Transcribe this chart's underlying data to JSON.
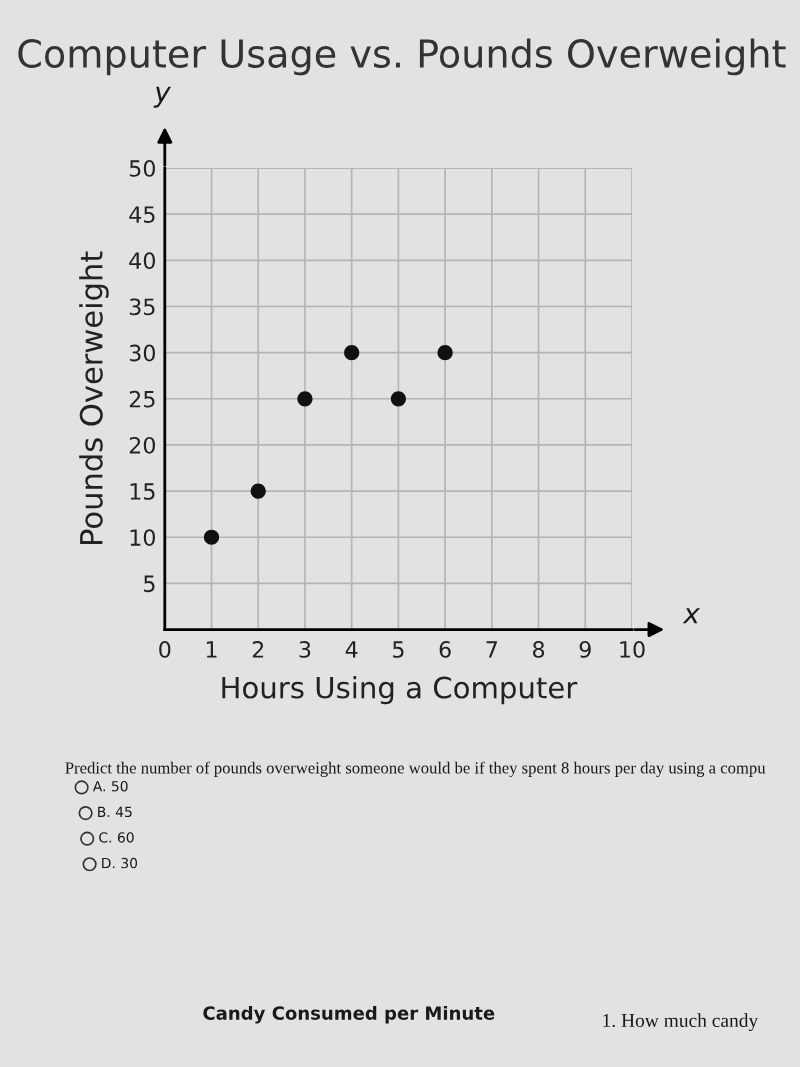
{
  "chart_data": {
    "type": "scatter",
    "title": "Computer Usage vs. Pounds Overweight",
    "xlabel": "Hours Using a Computer",
    "ylabel": "Pounds Overweight",
    "x": [
      1,
      2,
      3,
      4,
      5,
      6
    ],
    "values": [
      10,
      15,
      25,
      30,
      25,
      30
    ],
    "color": "#111111",
    "marker": "circle",
    "xlim": [
      0,
      10
    ],
    "ylim": [
      0,
      50
    ],
    "xticks": [
      0,
      1,
      2,
      3,
      4,
      5,
      6,
      7,
      8,
      9,
      10
    ],
    "yticks": [
      5,
      10,
      15,
      20,
      25,
      30,
      35,
      40,
      45,
      50
    ],
    "grid": true,
    "annotations": [
      "y",
      "x",
      "Predict the number of pounds overweight someone would be if they spent 8 hours per day using a compu",
      "A. 50",
      "B. 45",
      "C. 60",
      "D. 30",
      "Candy Consumed per Minute",
      "1. How much candy"
    ]
  }
}
